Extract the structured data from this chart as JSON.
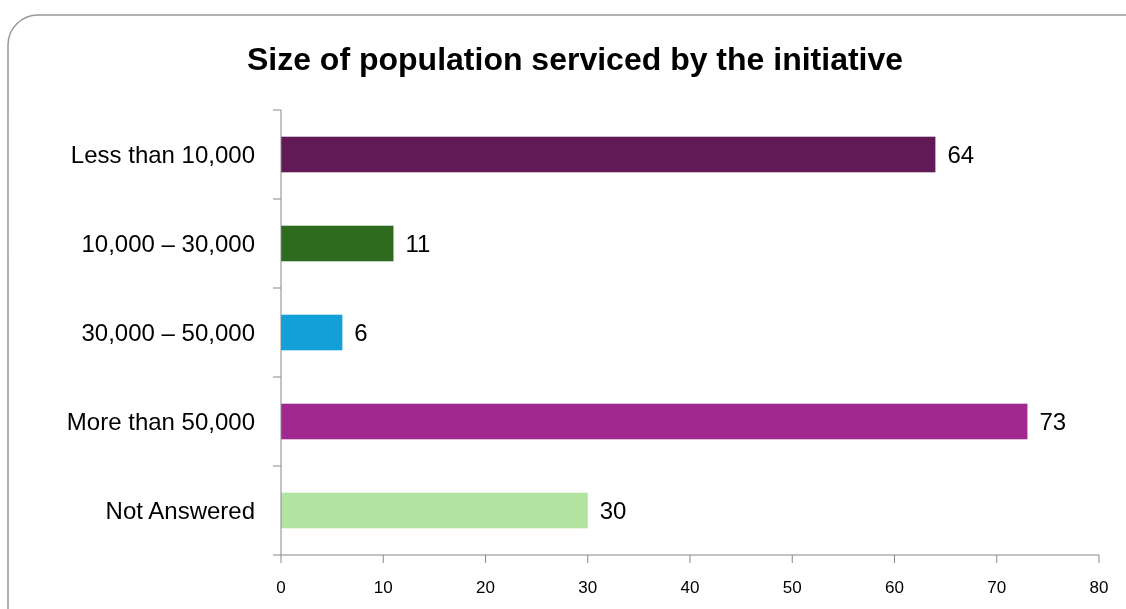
{
  "chart_data": {
    "type": "bar",
    "orientation": "horizontal",
    "title": "Size of population serviced by the initiative",
    "categories": [
      "Less than 10,000",
      "10,000 – 30,000",
      "30,000 – 50,000",
      "More than 50,000",
      "Not Answered"
    ],
    "values": [
      64,
      11,
      6,
      73,
      30
    ],
    "colors": [
      "#611a56",
      "#2e6b1f",
      "#139fd8",
      "#a0288f",
      "#b3e3a0"
    ],
    "xlim": [
      0,
      80
    ],
    "xticks": [
      0,
      10,
      20,
      30,
      40,
      50,
      60,
      70,
      80
    ],
    "data_labels": true,
    "grid": false
  }
}
